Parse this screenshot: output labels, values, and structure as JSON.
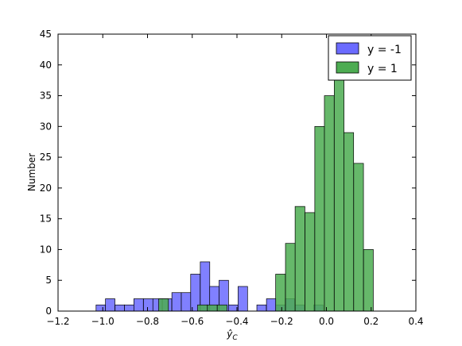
{
  "chart_data": {
    "type": "bar",
    "xlabel": "ŷ",
    "xlabel_sub": "C",
    "ylabel": "Number",
    "xlim": [
      -1.2,
      0.4
    ],
    "ylim": [
      0,
      45
    ],
    "x_ticks": [
      -1.2,
      -1.0,
      -0.8,
      -0.6,
      -0.4,
      -0.2,
      0.0,
      0.2,
      0.4
    ],
    "x_tick_labels": [
      "−1.2",
      "−1.0",
      "−0.8",
      "−0.6",
      "−0.4",
      "−0.2",
      "0.0",
      "0.2",
      "0.4"
    ],
    "y_ticks": [
      0,
      5,
      10,
      15,
      20,
      25,
      30,
      35,
      40,
      45
    ],
    "y_tick_labels": [
      "0",
      "5",
      "10",
      "15",
      "20",
      "25",
      "30",
      "35",
      "40",
      "45"
    ],
    "grid": false,
    "legend_position": "top-right",
    "series": [
      {
        "name": "y = -1",
        "color": "#6b6bff",
        "bin_width": 0.0423,
        "bin_starts": [
          -1.03,
          -0.988,
          -0.945,
          -0.903,
          -0.861,
          -0.818,
          -0.776,
          -0.734,
          -0.691,
          -0.649,
          -0.607,
          -0.564,
          -0.522,
          -0.48,
          -0.438,
          -0.395,
          -0.353,
          -0.311,
          -0.268,
          -0.226,
          -0.184,
          -0.141,
          -0.099,
          -0.057,
          -0.014
        ],
        "counts": [
          1,
          2,
          1,
          1,
          2,
          2,
          2,
          2,
          3,
          3,
          6,
          8,
          4,
          5,
          1,
          4,
          0,
          1,
          2,
          1,
          2,
          1,
          0,
          1,
          0
        ]
      },
      {
        "name": "y = 1",
        "color": "#4dac52",
        "bin_width": 0.0436,
        "bin_starts": [
          -0.75,
          -0.706,
          -0.663,
          -0.619,
          -0.576,
          -0.532,
          -0.488,
          -0.445,
          -0.401,
          -0.358,
          -0.314,
          -0.27,
          -0.227,
          -0.183,
          -0.14,
          -0.096,
          -0.052,
          -0.009,
          0.035,
          0.078,
          0.122,
          0.166,
          0.209,
          0.253,
          0.296,
          0.34
        ],
        "counts": [
          2,
          0,
          0,
          0,
          1,
          1,
          1,
          0,
          0,
          0,
          0,
          0,
          6,
          11,
          17,
          16,
          30,
          35,
          38,
          29,
          24,
          10,
          0,
          0,
          0,
          0
        ]
      }
    ]
  },
  "overlap_color": "#2f6e75",
  "frame_color": "#000000"
}
